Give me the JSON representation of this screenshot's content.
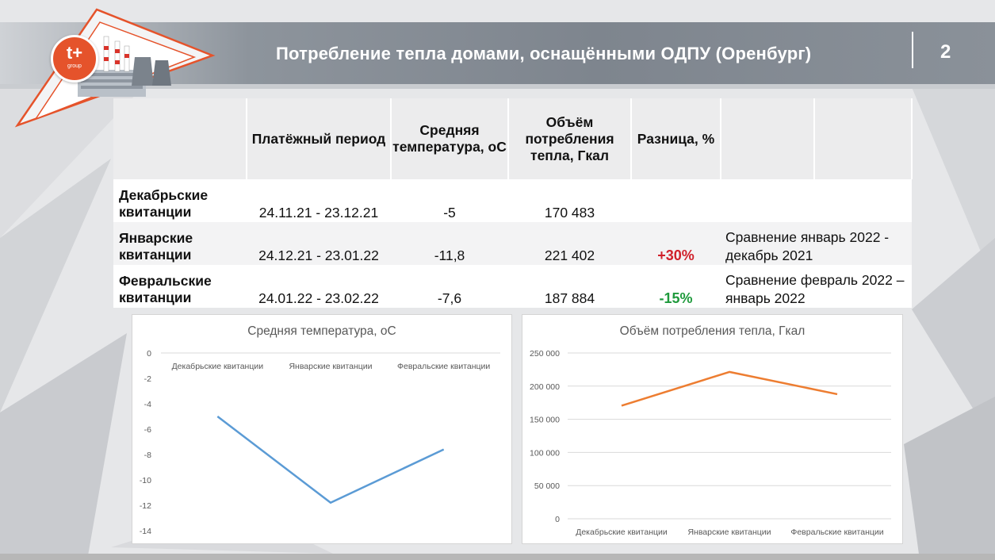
{
  "header": {
    "title": "Потребление тепла домами, оснащёнными ОДПУ (Оренбург)",
    "page_number": "2",
    "logo_text": "t+",
    "logo_subtext": "group"
  },
  "table": {
    "columns": [
      "",
      "Платёжный период",
      "Средняя температура, оС",
      "Объём потребления тепла, Гкал",
      "Разница, %",
      "",
      ""
    ],
    "rows": [
      {
        "label": "Декабрьские квитанции",
        "period": "24.11.21 - 23.12.21",
        "temp": "-5",
        "volume": "170 483",
        "diff": "",
        "diff_color": "",
        "note": ""
      },
      {
        "label": "Январские квитанции",
        "period": "24.12.21 - 23.01.22",
        "temp": "-11,8",
        "volume": "221 402",
        "diff": "+30%",
        "diff_color": "#d0202a",
        "note": "Сравнение январь 2022 - декабрь 2021"
      },
      {
        "label": "Февральские квитанции",
        "period": "24.01.22 - 23.02.22",
        "temp": "-7,6",
        "volume": "187 884",
        "diff": "-15%",
        "diff_color": "#1f9a3c",
        "note": "Сравнение февраль 2022 – январь 2022"
      }
    ]
  },
  "chart_data": [
    {
      "type": "line",
      "title": "Средняя температура, оС",
      "categories": [
        "Декабрьские квитанции",
        "Январские квитанции",
        "Февральские квитанции"
      ],
      "series": [
        {
          "values": [
            -5,
            -11.8,
            -7.6
          ],
          "color": "#5b9bd5"
        }
      ],
      "ylim": [
        -14,
        0
      ],
      "yticks": [
        "0",
        "-2",
        "-4",
        "-6",
        "-8",
        "-10",
        "-12",
        "-14"
      ],
      "category_axis_position": "top",
      "grid": false,
      "legend": "none"
    },
    {
      "type": "line",
      "title": "Объём потребления тепла, Гкал",
      "categories": [
        "Декабрьские квитанции",
        "Январские квитанции",
        "Февральские квитанции"
      ],
      "series": [
        {
          "values": [
            170483,
            221402,
            187884
          ],
          "color": "#ed7d31"
        }
      ],
      "ylim": [
        0,
        250000
      ],
      "yticks": [
        "0",
        "50 000",
        "100 000",
        "150 000",
        "200 000",
        "250 000"
      ],
      "category_axis_position": "bottom",
      "grid": true,
      "legend": "none"
    }
  ]
}
